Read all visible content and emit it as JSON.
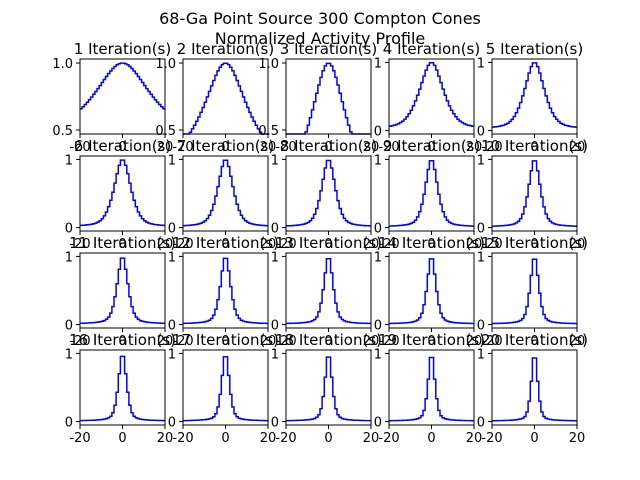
{
  "figure": {
    "title_line1": "68-Ga Point Source 300 Compton Cones",
    "title_line2": "Normalized Activity Profile"
  },
  "chart_data": {
    "type": "line",
    "layout": "grid of 4 rows x 5 columns of small step-line plots",
    "line_color": "#0000ff",
    "x_tick_labels": [
      "-20",
      "0",
      "20"
    ],
    "y_tick_labels_row1_col1": [
      "0.5",
      "1.0"
    ],
    "y_tick_labels_row1_col2_3": [
      "0.5",
      "1.0"
    ],
    "y_tick_labels_row1_col3": [
      "0.5",
      "1.0"
    ],
    "y_tick_labels_other": [
      "0",
      "1"
    ],
    "panels": [
      {
        "title": "1 Iteration(s)",
        "ymin": 0.5,
        "ymax": 1.0,
        "width": 13
      },
      {
        "title": "2 Iteration(s)",
        "ymin": 0.3,
        "ymax": 1.0,
        "width": 10
      },
      {
        "title": "3 Iteration(s)",
        "ymin": 0.15,
        "ymax": 1.0,
        "width": 8
      },
      {
        "title": "4 Iteration(s)",
        "ymin": 0.1,
        "ymax": 1.0,
        "width": 6
      },
      {
        "title": "5 Iteration(s)",
        "ymin": 0.05,
        "ymax": 1.0,
        "width": 5
      },
      {
        "title": "6 Iteration(s)",
        "ymin": 0.0,
        "ymax": 1.0,
        "width": 4.2
      },
      {
        "title": "7 Iteration(s)",
        "ymin": 0.0,
        "ymax": 1.0,
        "width": 3.8
      },
      {
        "title": "8 Iteration(s)",
        "ymin": 0.0,
        "ymax": 1.0,
        "width": 3.4
      },
      {
        "title": "9 Iteration(s)",
        "ymin": 0.0,
        "ymax": 1.0,
        "width": 3.1
      },
      {
        "title": "10 Iteration(s)",
        "ymin": 0.0,
        "ymax": 1.0,
        "width": 2.9
      },
      {
        "title": "11 Iteration(s)",
        "ymin": 0.0,
        "ymax": 1.0,
        "width": 2.7
      },
      {
        "title": "12 Iteration(s)",
        "ymin": 0.0,
        "ymax": 1.0,
        "width": 2.5
      },
      {
        "title": "13 Iteration(s)",
        "ymin": 0.0,
        "ymax": 1.0,
        "width": 2.3
      },
      {
        "title": "14 Iteration(s)",
        "ymin": 0.0,
        "ymax": 1.0,
        "width": 2.2
      },
      {
        "title": "15 Iteration(s)",
        "ymin": 0.0,
        "ymax": 1.0,
        "width": 2.1
      },
      {
        "title": "16 Iteration(s)",
        "ymin": 0.0,
        "ymax": 1.0,
        "width": 2.0
      },
      {
        "title": "17 Iteration(s)",
        "ymin": 0.0,
        "ymax": 1.0,
        "width": 1.9
      },
      {
        "title": "18 Iteration(s)",
        "ymin": 0.0,
        "ymax": 1.0,
        "width": 1.8
      },
      {
        "title": "19 Iteration(s)",
        "ymin": 0.0,
        "ymax": 1.0,
        "width": 1.7
      },
      {
        "title": "20 Iteration(s)",
        "ymin": 0.0,
        "ymax": 1.0,
        "width": 1.6
      }
    ],
    "x_range": [
      -20,
      20
    ]
  }
}
